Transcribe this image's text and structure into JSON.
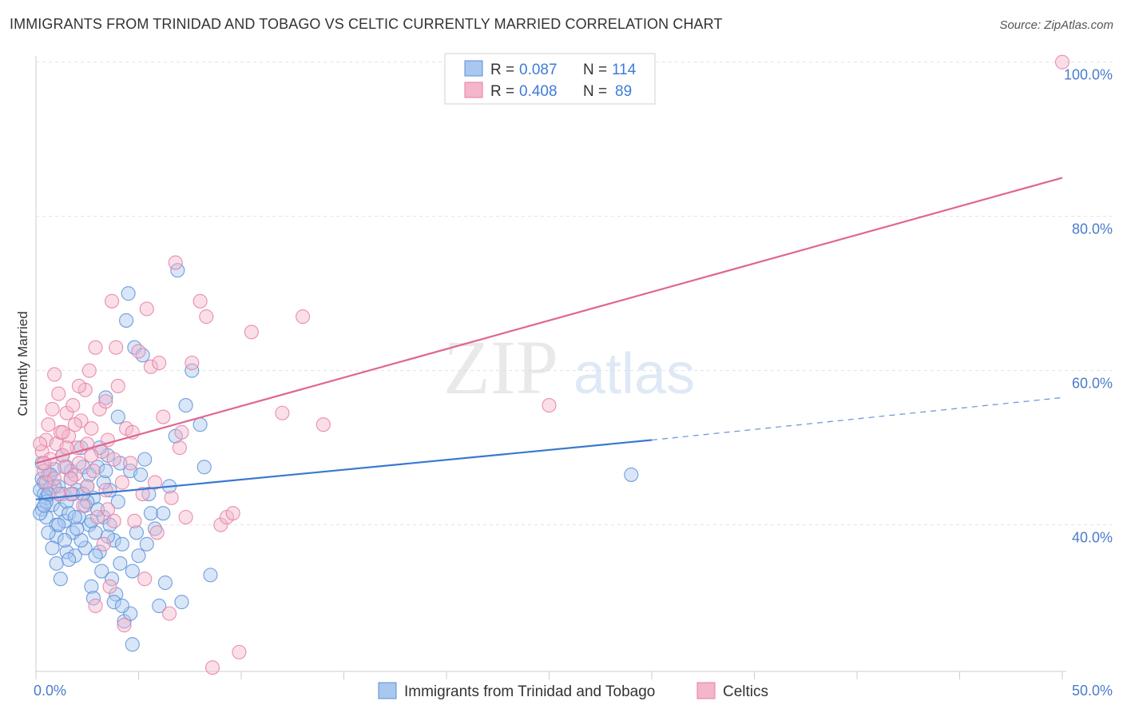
{
  "header": {
    "title": "IMMIGRANTS FROM TRINIDAD AND TOBAGO VS CELTIC CURRENTLY MARRIED CORRELATION CHART",
    "source": "Source: ZipAtlas.com"
  },
  "watermark": {
    "zip": "ZIP",
    "atlas": "atlas"
  },
  "chart_data": {
    "type": "scatter",
    "title": "IMMIGRANTS FROM TRINIDAD AND TOBAGO VS CELTIC CURRENTLY MARRIED CORRELATION CHART",
    "xlabel": "",
    "ylabel": "Currently Married",
    "xlim": [
      0,
      50
    ],
    "ylim": [
      21,
      101
    ],
    "x_tick_labels": [
      "0.0%",
      "50.0%"
    ],
    "y_ticks": [
      {
        "value": 40,
        "label": "40.0%"
      },
      {
        "value": 60,
        "label": "60.0%"
      },
      {
        "value": 80,
        "label": "80.0%"
      },
      {
        "value": 100,
        "label": "100.0%"
      }
    ],
    "grid": true,
    "legend_position": "top-center",
    "stats_legend": [
      {
        "r_label": "R = ",
        "r_value": "0.087",
        "n_label": "N = ",
        "n_value": "114"
      },
      {
        "r_label": "R = ",
        "r_value": "0.408",
        "n_label": "N = ",
        "n_value": "89"
      }
    ],
    "series": [
      {
        "name": "Immigrants from Trinidad and Tobago",
        "color": "#5b8fd6",
        "fill": "#a9c7ef",
        "trend": {
          "x0": 0,
          "y0": 43.3,
          "x1": 30,
          "y1": 51.0,
          "dash_to": 50,
          "dash_y": 56.5
        },
        "points": [
          [
            0.2,
            44.5
          ],
          [
            0.3,
            46.0
          ],
          [
            0.3,
            42.0
          ],
          [
            0.4,
            44.0
          ],
          [
            0.4,
            45.5
          ],
          [
            0.5,
            41.0
          ],
          [
            0.5,
            43.5
          ],
          [
            0.6,
            46.5
          ],
          [
            0.7,
            44.8
          ],
          [
            0.8,
            42.6
          ],
          [
            0.9,
            47.2
          ],
          [
            1.0,
            40.0
          ],
          [
            1.0,
            38.5
          ],
          [
            1.1,
            45.0
          ],
          [
            1.2,
            42.0
          ],
          [
            1.3,
            44.0
          ],
          [
            1.4,
            40.5
          ],
          [
            1.5,
            43.0
          ],
          [
            1.5,
            36.5
          ],
          [
            1.6,
            41.5
          ],
          [
            1.7,
            47.0
          ],
          [
            1.8,
            39.0
          ],
          [
            1.9,
            36.0
          ],
          [
            2.0,
            44.5
          ],
          [
            2.1,
            41.0
          ],
          [
            2.2,
            50.0
          ],
          [
            2.3,
            47.5
          ],
          [
            2.4,
            37.0
          ],
          [
            2.5,
            45.0
          ],
          [
            2.6,
            40.0
          ],
          [
            2.7,
            32.0
          ],
          [
            2.8,
            43.5
          ],
          [
            2.9,
            39.0
          ],
          [
            3.0,
            47.5
          ],
          [
            3.1,
            36.5
          ],
          [
            3.2,
            34.0
          ],
          [
            3.3,
            41.0
          ],
          [
            3.4,
            56.5
          ],
          [
            3.5,
            49.0
          ],
          [
            3.6,
            44.5
          ],
          [
            3.7,
            33.0
          ],
          [
            3.8,
            38.0
          ],
          [
            3.9,
            31.0
          ],
          [
            4.0,
            54.0
          ],
          [
            4.1,
            48.0
          ],
          [
            4.2,
            37.5
          ],
          [
            4.3,
            27.5
          ],
          [
            4.4,
            66.5
          ],
          [
            4.5,
            70.0
          ],
          [
            4.6,
            28.5
          ],
          [
            4.7,
            34.0
          ],
          [
            4.8,
            63.0
          ],
          [
            4.9,
            39.0
          ],
          [
            5.0,
            36.0
          ],
          [
            5.2,
            62.0
          ],
          [
            5.4,
            37.5
          ],
          [
            5.6,
            41.5
          ],
          [
            5.8,
            39.5
          ],
          [
            6.0,
            29.5
          ],
          [
            6.3,
            32.5
          ],
          [
            6.5,
            45.0
          ],
          [
            6.8,
            51.5
          ],
          [
            7.1,
            30.0
          ],
          [
            7.3,
            55.5
          ],
          [
            7.6,
            60.0
          ],
          [
            8.0,
            53.0
          ],
          [
            8.2,
            47.5
          ],
          [
            8.5,
            33.5
          ],
          [
            0.3,
            48.0
          ],
          [
            0.6,
            39.0
          ],
          [
            1.0,
            35.0
          ],
          [
            1.3,
            49.0
          ],
          [
            1.8,
            44.0
          ],
          [
            2.2,
            38.0
          ],
          [
            2.6,
            46.5
          ],
          [
            3.0,
            42.0
          ],
          [
            3.5,
            38.5
          ],
          [
            4.0,
            43.0
          ],
          [
            4.6,
            47.0
          ],
          [
            5.1,
            46.5
          ],
          [
            5.5,
            44.0
          ],
          [
            6.2,
            41.5
          ],
          [
            6.9,
            73.0
          ],
          [
            1.1,
            40.0
          ],
          [
            0.8,
            37.0
          ],
          [
            1.6,
            35.5
          ],
          [
            2.4,
            42.5
          ],
          [
            2.9,
            36.0
          ],
          [
            3.3,
            45.5
          ],
          [
            3.8,
            30.0
          ],
          [
            4.2,
            29.5
          ],
          [
            4.7,
            24.5
          ],
          [
            5.3,
            48.5
          ],
          [
            0.2,
            41.5
          ],
          [
            0.9,
            45.0
          ],
          [
            1.5,
            47.5
          ],
          [
            2.0,
            39.5
          ],
          [
            2.5,
            43.0
          ],
          [
            3.1,
            50.0
          ],
          [
            3.6,
            40.0
          ],
          [
            4.1,
            35.0
          ],
          [
            1.2,
            33.0
          ],
          [
            2.8,
            30.5
          ],
          [
            0.5,
            43.0
          ],
          [
            1.7,
            46.0
          ],
          [
            0.4,
            42.5
          ],
          [
            1.9,
            41.0
          ],
          [
            2.3,
            44.0
          ],
          [
            3.4,
            47.0
          ],
          [
            0.7,
            46.5
          ],
          [
            1.4,
            38.0
          ],
          [
            2.7,
            40.5
          ],
          [
            29.0,
            46.5
          ],
          [
            0.6,
            44.0
          ]
        ]
      },
      {
        "name": "Celtics",
        "color": "#e57ea2",
        "fill": "#f5b5cb",
        "trend": {
          "x0": 0,
          "y0": 48.0,
          "x1": 50,
          "y1": 85.0
        },
        "points": [
          [
            0.3,
            49.5
          ],
          [
            0.4,
            47.0
          ],
          [
            0.5,
            51.0
          ],
          [
            0.6,
            53.0
          ],
          [
            0.7,
            48.5
          ],
          [
            0.8,
            55.0
          ],
          [
            0.9,
            46.0
          ],
          [
            1.0,
            50.5
          ],
          [
            1.1,
            57.0
          ],
          [
            1.2,
            52.0
          ],
          [
            1.3,
            49.0
          ],
          [
            1.4,
            47.5
          ],
          [
            1.5,
            54.5
          ],
          [
            1.6,
            51.5
          ],
          [
            1.7,
            44.0
          ],
          [
            1.8,
            55.5
          ],
          [
            1.9,
            46.5
          ],
          [
            2.0,
            50.0
          ],
          [
            2.1,
            48.0
          ],
          [
            2.2,
            53.5
          ],
          [
            2.3,
            42.5
          ],
          [
            2.4,
            57.5
          ],
          [
            2.5,
            45.0
          ],
          [
            2.6,
            60.0
          ],
          [
            2.7,
            52.5
          ],
          [
            2.8,
            47.0
          ],
          [
            2.9,
            63.0
          ],
          [
            3.0,
            41.0
          ],
          [
            3.1,
            55.0
          ],
          [
            3.2,
            49.5
          ],
          [
            3.3,
            37.5
          ],
          [
            3.4,
            44.5
          ],
          [
            3.5,
            51.0
          ],
          [
            3.6,
            32.0
          ],
          [
            3.7,
            69.0
          ],
          [
            3.8,
            48.5
          ],
          [
            3.9,
            63.0
          ],
          [
            4.0,
            58.0
          ],
          [
            4.2,
            45.5
          ],
          [
            4.4,
            52.5
          ],
          [
            4.6,
            48.0
          ],
          [
            4.8,
            40.5
          ],
          [
            5.0,
            62.5
          ],
          [
            5.2,
            44.0
          ],
          [
            5.4,
            68.0
          ],
          [
            5.6,
            60.5
          ],
          [
            5.8,
            45.5
          ],
          [
            6.0,
            61.0
          ],
          [
            6.2,
            54.0
          ],
          [
            6.5,
            28.5
          ],
          [
            6.8,
            74.0
          ],
          [
            7.0,
            50.0
          ],
          [
            7.3,
            41.0
          ],
          [
            7.6,
            61.0
          ],
          [
            8.0,
            69.0
          ],
          [
            8.3,
            67.0
          ],
          [
            8.6,
            21.5
          ],
          [
            9.0,
            40.0
          ],
          [
            9.3,
            41.0
          ],
          [
            9.6,
            41.5
          ],
          [
            9.9,
            23.5
          ],
          [
            10.5,
            65.0
          ],
          [
            12.0,
            54.5
          ],
          [
            13.0,
            67.0
          ],
          [
            14.0,
            53.0
          ],
          [
            25.0,
            55.5
          ],
          [
            0.2,
            50.5
          ],
          [
            0.5,
            45.5
          ],
          [
            0.9,
            59.5
          ],
          [
            1.3,
            52.0
          ],
          [
            1.7,
            46.0
          ],
          [
            2.1,
            58.0
          ],
          [
            2.5,
            50.5
          ],
          [
            2.9,
            29.5
          ],
          [
            3.4,
            56.0
          ],
          [
            3.8,
            40.5
          ],
          [
            4.3,
            27.0
          ],
          [
            4.7,
            52.0
          ],
          [
            5.3,
            33.0
          ],
          [
            5.9,
            39.0
          ],
          [
            6.6,
            43.5
          ],
          [
            7.1,
            52.0
          ],
          [
            0.4,
            48.0
          ],
          [
            1.1,
            44.0
          ],
          [
            1.9,
            53.0
          ],
          [
            2.7,
            49.0
          ],
          [
            3.5,
            42.0
          ],
          [
            1.5,
            50.0
          ],
          [
            50.0,
            100.0
          ]
        ]
      }
    ]
  }
}
